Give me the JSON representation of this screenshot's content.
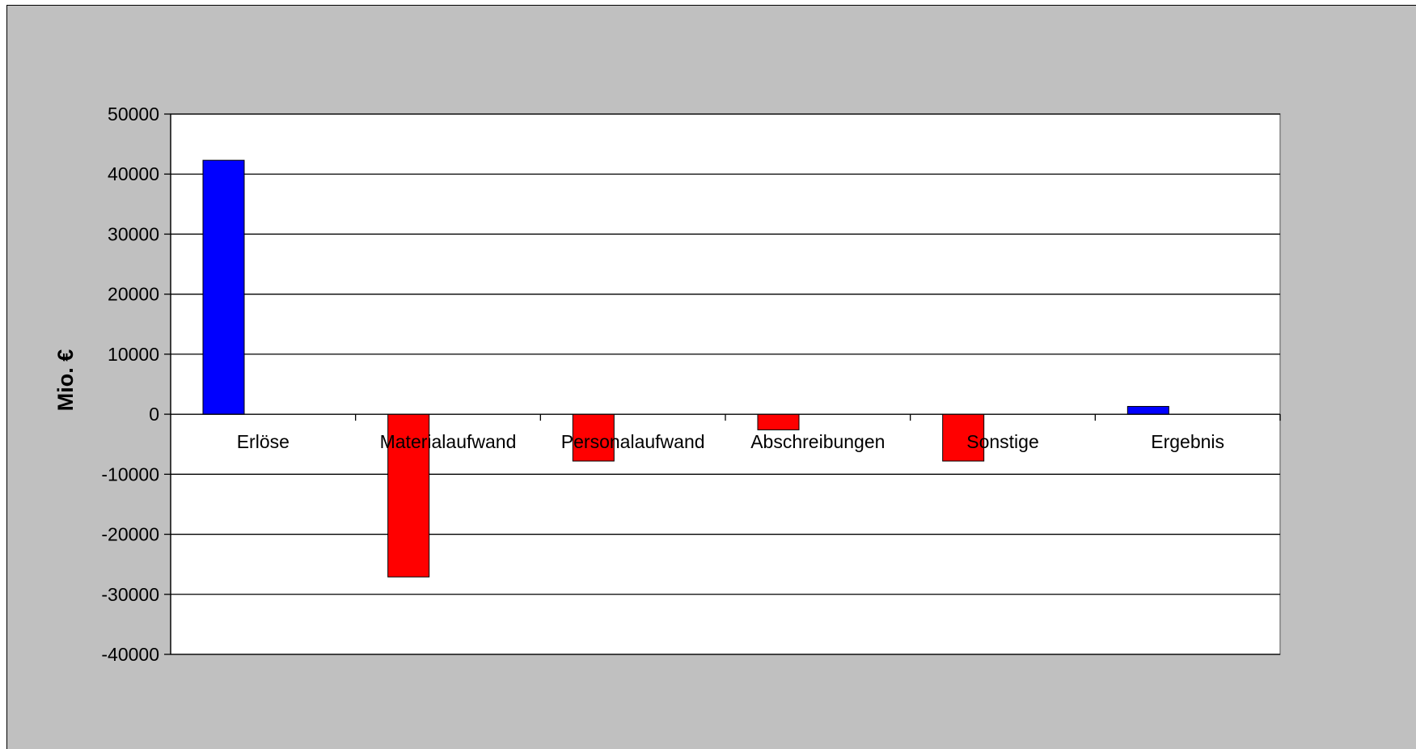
{
  "chart_data": {
    "type": "bar",
    "title": "",
    "xlabel": "",
    "ylabel": "Mio.  €",
    "categories": [
      "Erlöse",
      "Materialaufwand",
      "Personalaufwand",
      "Abschreibungen",
      "Sonstige",
      "Ergebnis"
    ],
    "values": [
      42300,
      -27100,
      -7800,
      -2600,
      -7800,
      1300
    ],
    "ylim": [
      -40000,
      50000
    ],
    "yticks": [
      50000,
      40000,
      30000,
      20000,
      10000,
      0,
      -10000,
      -20000,
      -30000,
      -40000
    ],
    "grid": true,
    "legend": "none",
    "colors": {
      "positive": "#0000ff",
      "negative": "#ff0000",
      "plot_background": "#ffffff",
      "chart_background": "#c0c0c0",
      "grid": "#000000"
    }
  }
}
